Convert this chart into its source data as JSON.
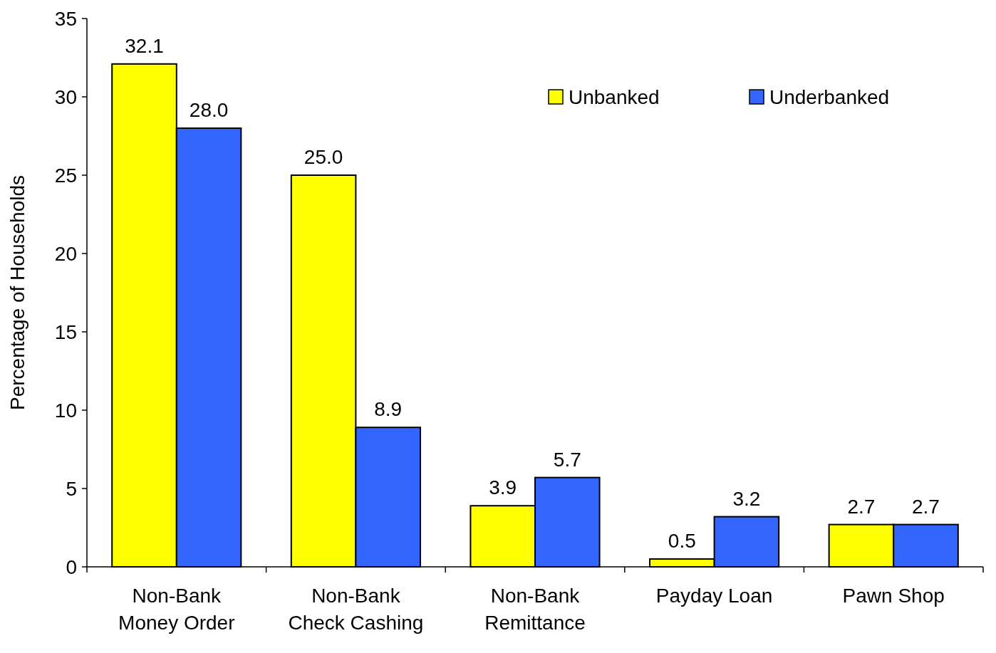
{
  "chart_data": {
    "type": "bar",
    "ylabel": "Percentage of Households",
    "categories": [
      "Non-Bank\nMoney Order",
      "Non-Bank\nCheck Cashing",
      "Non-Bank\nRemittance",
      "Payday Loan",
      "Pawn Shop"
    ],
    "series": [
      {
        "name": "Unbanked",
        "color": "#ffff00",
        "values": [
          32.1,
          25.0,
          3.9,
          0.5,
          2.7
        ]
      },
      {
        "name": "Underbanked",
        "color": "#3366ff",
        "values": [
          28.0,
          8.9,
          5.7,
          3.2,
          2.7
        ]
      }
    ],
    "value_labels": [
      [
        "32.1",
        "25.0",
        "3.9",
        "0.5",
        "2.7"
      ],
      [
        "28.0",
        "8.9",
        "5.7",
        "3.2",
        "2.7"
      ]
    ],
    "ylim": [
      0,
      35
    ],
    "yticks": [
      0,
      5,
      10,
      15,
      20,
      25,
      30,
      35
    ],
    "grid": false,
    "legend": "top right"
  }
}
